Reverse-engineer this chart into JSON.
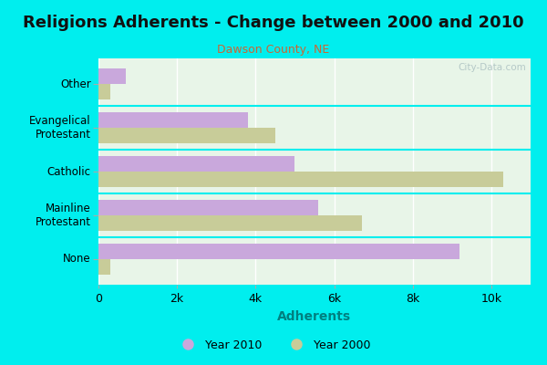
{
  "title": "Religions Adherents - Change between 2000 and 2010",
  "subtitle": "Dawson County, NE",
  "xlabel": "Adherents",
  "categories": [
    "None",
    "Mainline\nProtestant",
    "Catholic",
    "Evangelical\nProtestant",
    "Other"
  ],
  "values_2010": [
    9200,
    5600,
    5000,
    3800,
    700
  ],
  "values_2000": [
    300,
    6700,
    10300,
    4500,
    300
  ],
  "color_2010": "#c9a8dc",
  "color_2000": "#c8cc99",
  "background_color": "#00eeee",
  "plot_bg_color": "#e8f5e8",
  "watermark": "City-Data.com",
  "xlim": [
    0,
    11000
  ],
  "xticks": [
    0,
    2000,
    4000,
    6000,
    8000,
    10000
  ],
  "xticklabels": [
    "0",
    "2k",
    "4k",
    "6k",
    "8k",
    "10k"
  ],
  "legend_2010": "Year 2010",
  "legend_2000": "Year 2000",
  "xlabel_color": "#008080",
  "subtitle_color": "#cc6633"
}
